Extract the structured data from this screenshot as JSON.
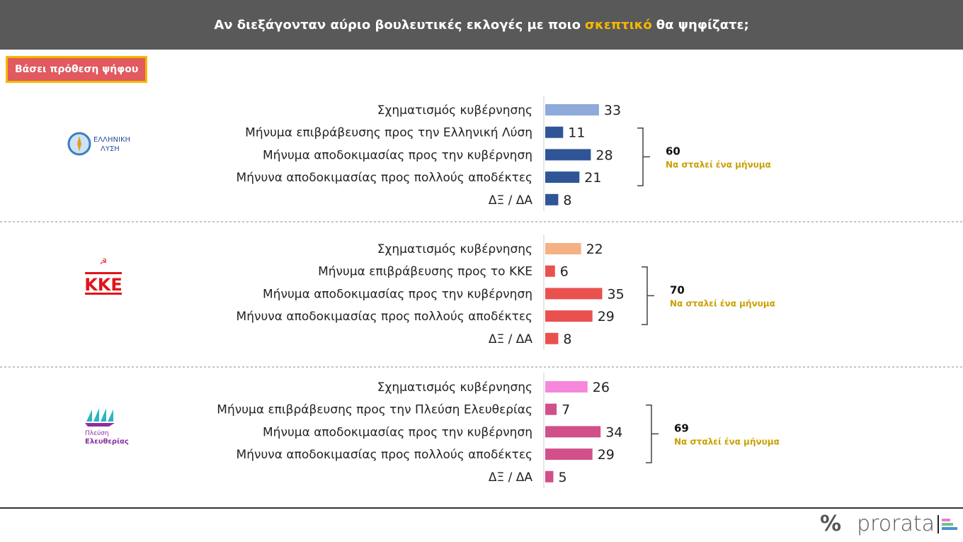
{
  "header": {
    "pre": "Αν διεξάγονταν αύριο βουλευτικές εκλογές με ποιο",
    "accent": "σκεπτικό",
    "post": "θα ψηφίζατε;",
    "accent_color": "#f5b800"
  },
  "badge": "Βάσει πρόθεση ψήφου",
  "logo": {
    "symbol": "%",
    "text": "prorata"
  },
  "chart_data": {
    "type": "bar",
    "orientation": "horizontal",
    "groups": [
      {
        "party": "ΕΛΛΗΝΙΚΗ ΛΥΣΗ",
        "categories": [
          "Σχηματισμός κυβέρνησης",
          "Μήνυμα επιβράβευσης προς την Ελληνική Λύση",
          "Μήνυμα αποδοκιμασίας προς την κυβέρνηση",
          "Μήνυνα αποδοκιμασίας προς πολλούς αποδέκτες",
          "ΔΞ / ΔΑ"
        ],
        "values": [
          33,
          11,
          28,
          21,
          8
        ],
        "colors": [
          "#8eaadb",
          "#2f5597",
          "#2f5597",
          "#2f5597",
          "#2f5597"
        ],
        "bracket_total": "60",
        "bracket_note": "Να σταλεί ένα μήνυμα"
      },
      {
        "party": "ΚΚΕ",
        "categories": [
          "Σχηματισμός κυβέρνησης",
          "Μήνυμα επιβράβευσης προς το ΚΚΕ",
          "Μήνυμα αποδοκιμασίας προς την κυβέρνηση",
          "Μήνυνα αποδοκιμασίας προς πολλούς αποδέκτες",
          "ΔΞ / ΔΑ"
        ],
        "values": [
          22,
          6,
          35,
          29,
          8
        ],
        "colors": [
          "#f4b183",
          "#e9514f",
          "#e9514f",
          "#e9514f",
          "#e9514f"
        ],
        "bracket_total": "70",
        "bracket_note": "Να σταλεί ένα μήνυμα"
      },
      {
        "party": "Πλεύση Ελευθερίας",
        "categories": [
          "Σχηματισμός κυβέρνησης",
          "Μήνυμα επιβράβευσης προς την Πλεύση Ελευθερίας",
          "Μήνυμα αποδοκιμασίας προς την κυβέρνηση",
          "Μήνυνα αποδοκιμασίας προς πολλούς αποδέκτες",
          "ΔΞ / ΔΑ"
        ],
        "values": [
          26,
          7,
          34,
          29,
          5
        ],
        "colors": [
          "#f787dc",
          "#d1508a",
          "#d1508a",
          "#d1508a",
          "#d1508a"
        ],
        "bracket_total": "69",
        "bracket_note": "Να σταλεί ένα μήνυμα"
      }
    ]
  }
}
